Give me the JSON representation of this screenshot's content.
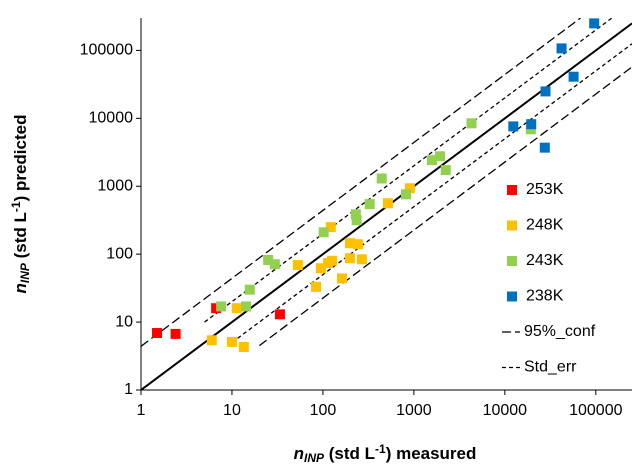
{
  "chart_data": {
    "type": "scatter",
    "log_x": true,
    "log_y": true,
    "xlim": [
      1,
      250000
    ],
    "ylim": [
      1,
      300000
    ],
    "xticks": [
      1,
      10,
      100,
      1000,
      10000,
      100000
    ],
    "yticks": [
      1,
      10,
      100,
      1000,
      10000,
      100000
    ],
    "x_label": {
      "n": "n",
      "sub": "INP",
      "mid": " (std L",
      "sup": "-1",
      "end": ") measured"
    },
    "y_label": {
      "n": "n",
      "sub": "INP",
      "mid": " (std L",
      "sup": "-1",
      "end": ") predicted"
    },
    "legend": "right",
    "series": [
      {
        "name": "253K",
        "color": "#ff0000",
        "x": [
          1.5,
          2.4,
          6.7,
          33.7
        ],
        "values": [
          6.9,
          6.7,
          16,
          13
        ]
      },
      {
        "name": "248K",
        "color": "#ffc000",
        "x": [
          6,
          10,
          11.3,
          13.5,
          53,
          84,
          95,
          114,
          126,
          122,
          162,
          198,
          198,
          243,
          268,
          518,
          903
        ],
        "values": [
          5.4,
          5.1,
          16,
          4.3,
          69,
          33,
          62,
          74,
          80,
          250,
          44,
          87,
          145,
          140,
          84,
          562,
          933
        ]
      },
      {
        "name": "243K",
        "color": "#92d050",
        "x": [
          7.6,
          14.3,
          15.7,
          25,
          29.6,
          102,
          230,
          235,
          327,
          443,
          818,
          1580,
          1940,
          2240,
          4300,
          19300
        ],
        "values": [
          17,
          17,
          30,
          82,
          71,
          210,
          387,
          316,
          545,
          1300,
          760,
          2420,
          2760,
          1730,
          8450,
          6900
        ]
      },
      {
        "name": "238K",
        "color": "#0070c0",
        "x": [
          12400,
          19500,
          28000,
          27500,
          42000,
          57000,
          96000
        ],
        "values": [
          7600,
          8200,
          24900,
          3700,
          107000,
          41000,
          250000
        ]
      }
    ],
    "lines": [
      {
        "style": "solid",
        "x": [
          1,
          250000
        ],
        "values": [
          1,
          250000
        ]
      },
      {
        "name": "95%_conf",
        "style": "dashed",
        "pieces": [
          {
            "x": [
              1,
              68000
            ],
            "values": [
              4.4,
              300000
            ]
          },
          {
            "x": [
              20,
              250000
            ],
            "values": [
              4.5,
              57000
            ]
          }
        ]
      },
      {
        "name": "Std_err",
        "style": "dotted",
        "pieces": [
          {
            "x": [
              5,
              150000
            ],
            "values": [
              10,
              300000
            ]
          },
          {
            "x": [
              10,
              250000
            ],
            "values": [
              5,
              125000
            ]
          }
        ]
      }
    ]
  }
}
